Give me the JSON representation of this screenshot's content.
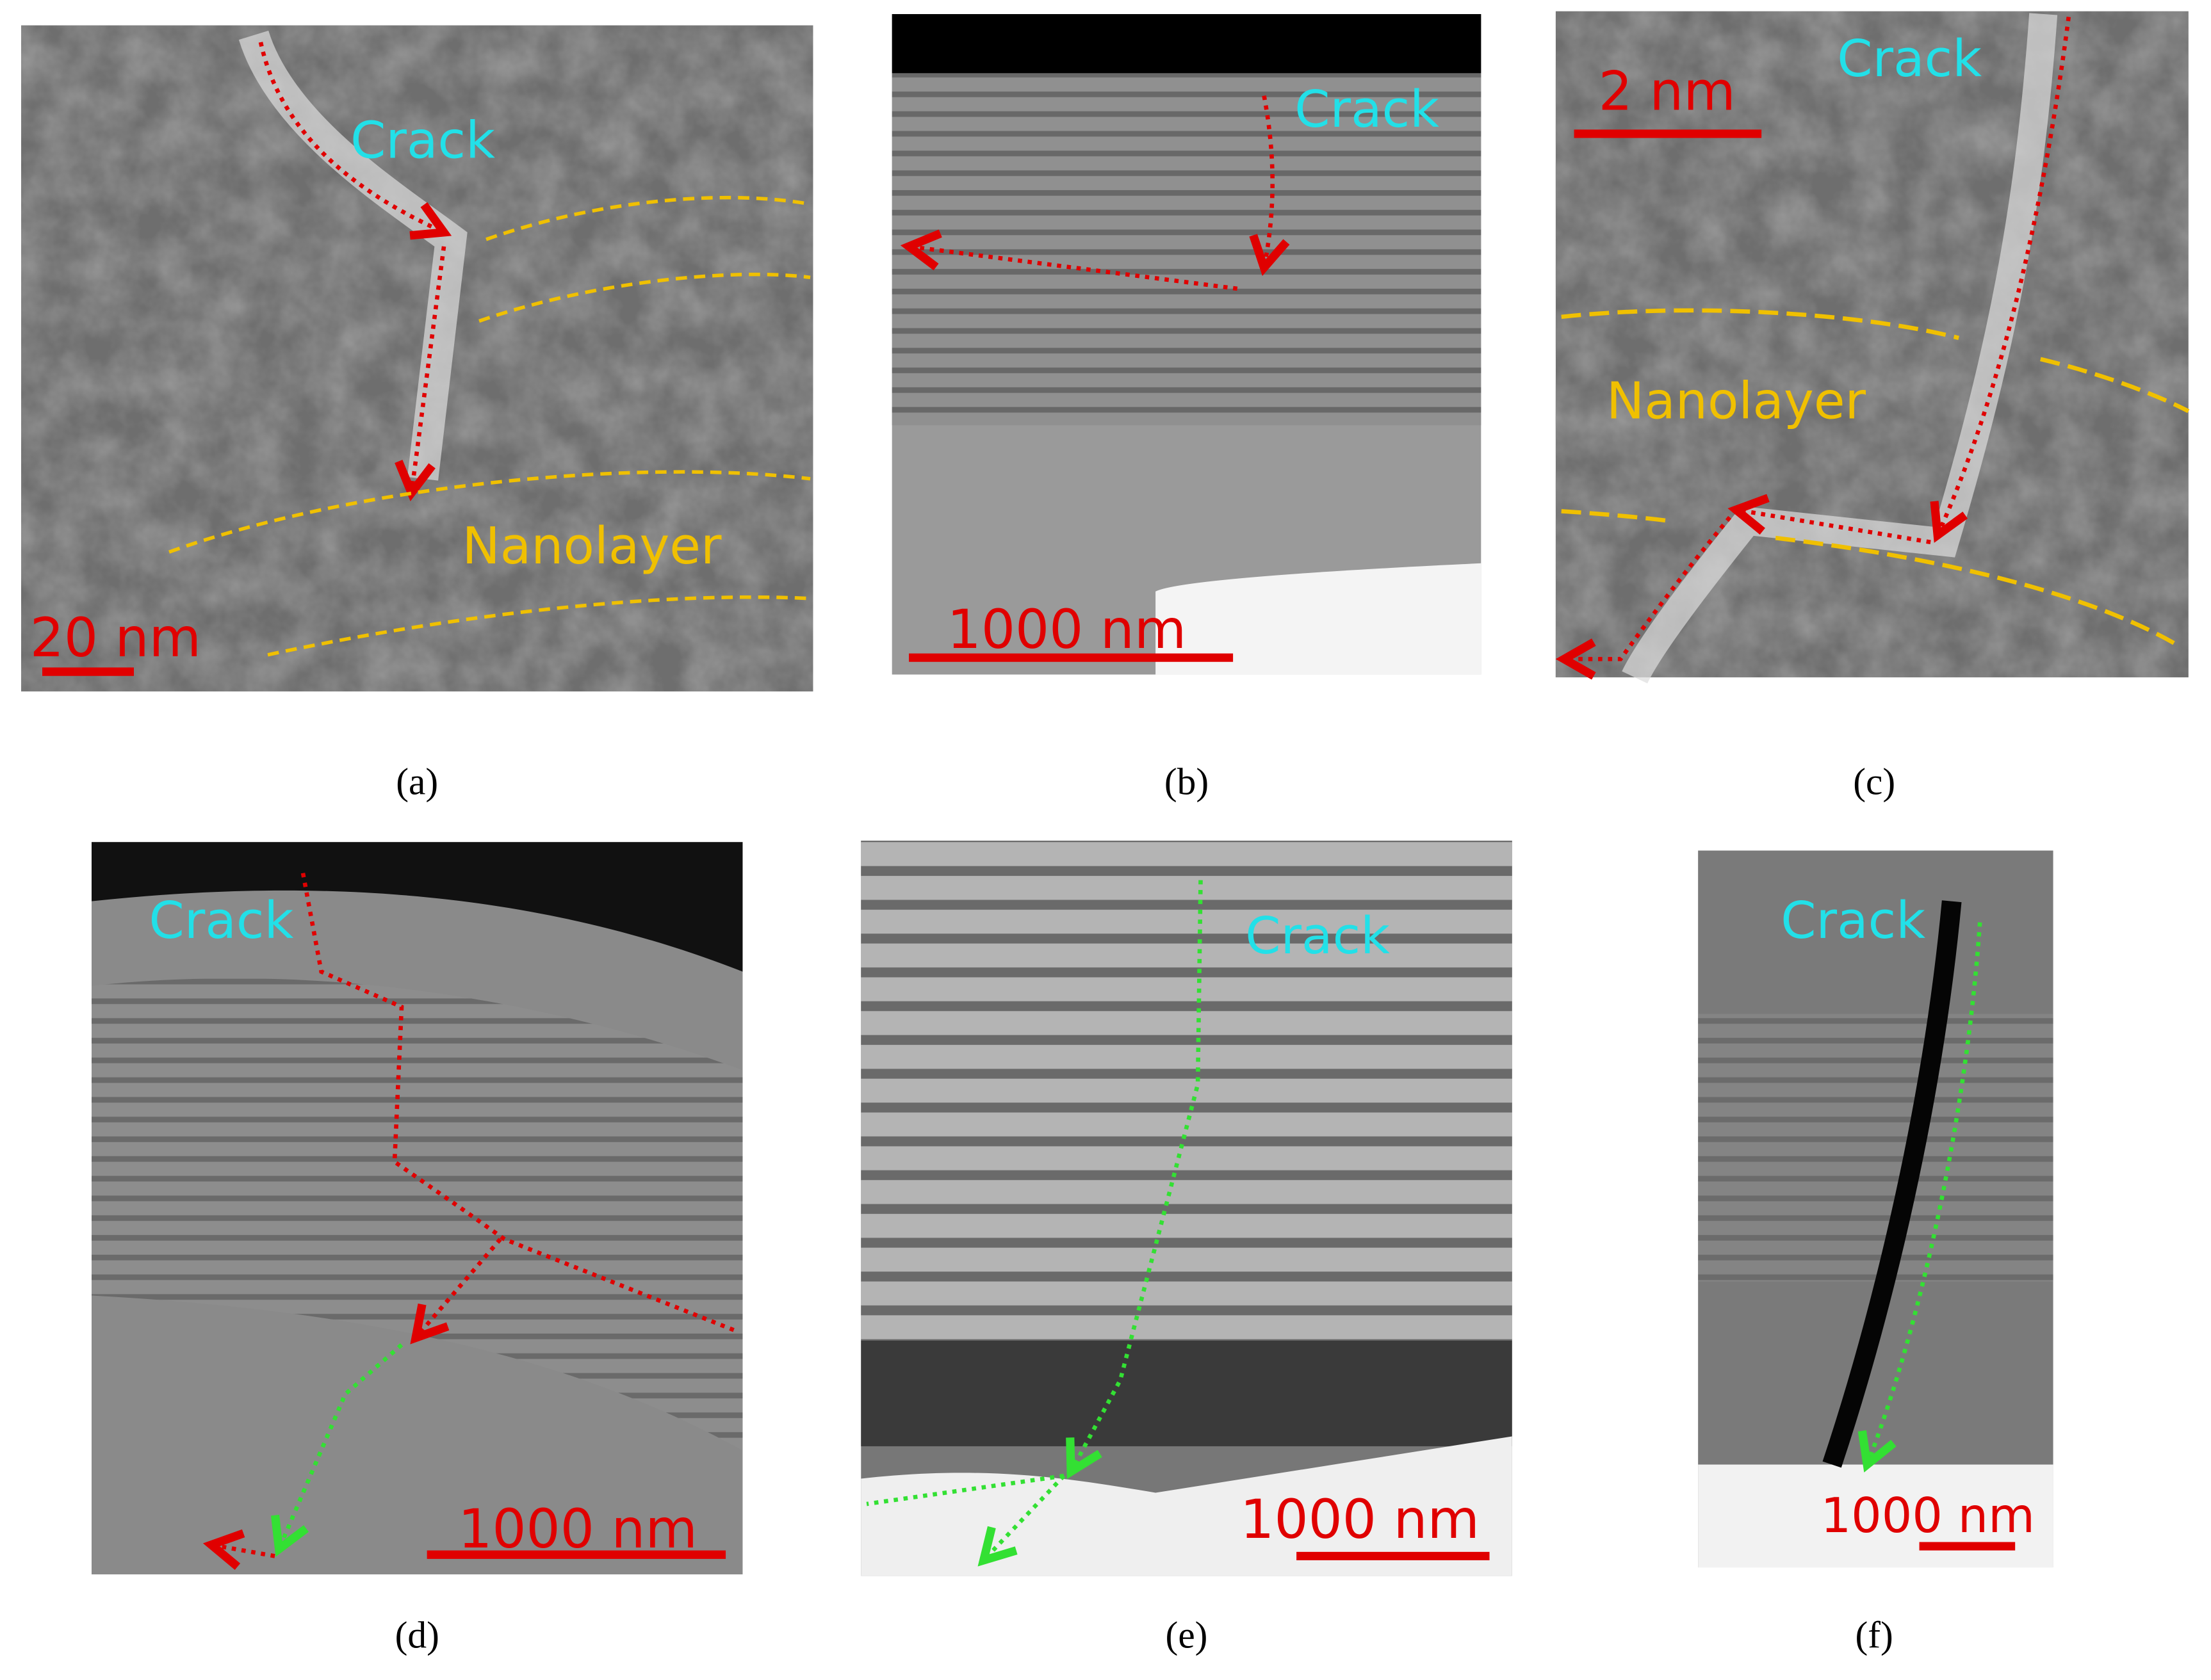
{
  "panels": [
    {
      "label": "(a)",
      "crack": "Crack",
      "nanolayer": "Nanolayer",
      "scale_bar": "20 nm"
    },
    {
      "label": "(b)",
      "crack": "Crack",
      "scale_bar": "1000 nm"
    },
    {
      "label": "(c)",
      "crack": "Crack",
      "nanolayer": "Nanolayer",
      "scale_bar": "2 nm"
    },
    {
      "label": "(d)",
      "crack": "Crack",
      "scale_bar": "1000 nm"
    },
    {
      "label": "(e)",
      "crack": "Crack",
      "scale_bar": "1000 nm"
    },
    {
      "label": "(f)",
      "crack": "Crack",
      "scale_bar": "1000 nm"
    }
  ]
}
